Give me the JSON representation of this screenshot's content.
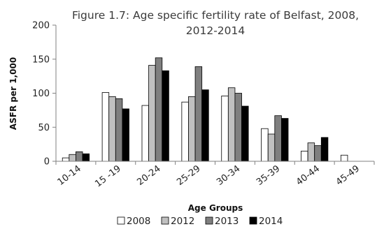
{
  "chart_data": {
    "type": "bar",
    "title_lines": [
      "Figure 1.7: Age specific fertility rate of Belfast, 2008,",
      "2012-2014"
    ],
    "xlabel": "Age Groups",
    "ylabel": "ASFR per 1,000",
    "ylim": [
      0,
      200
    ],
    "yticks": [
      "0",
      "50",
      "100",
      "150",
      "200"
    ],
    "grid": false,
    "legend_position": "bottom",
    "categories": [
      "10-14",
      "15 -19",
      "20-24",
      "25-29",
      "30-34",
      "35-39",
      "40-44",
      "45-49"
    ],
    "series": [
      {
        "name": "2008",
        "color": "#ffffff",
        "values": [
          5,
          101,
          82,
          87,
          96,
          48,
          15,
          9
        ]
      },
      {
        "name": "2012",
        "color": "#c0c0c0",
        "values": [
          10,
          95,
          141,
          95,
          108,
          40,
          27,
          0
        ]
      },
      {
        "name": "2013",
        "color": "#7f7f7f",
        "values": [
          14,
          92,
          152,
          139,
          100,
          67,
          23,
          0
        ]
      },
      {
        "name": "2014",
        "color": "#000000",
        "values": [
          11,
          77,
          133,
          105,
          81,
          63,
          35,
          0
        ]
      }
    ]
  }
}
